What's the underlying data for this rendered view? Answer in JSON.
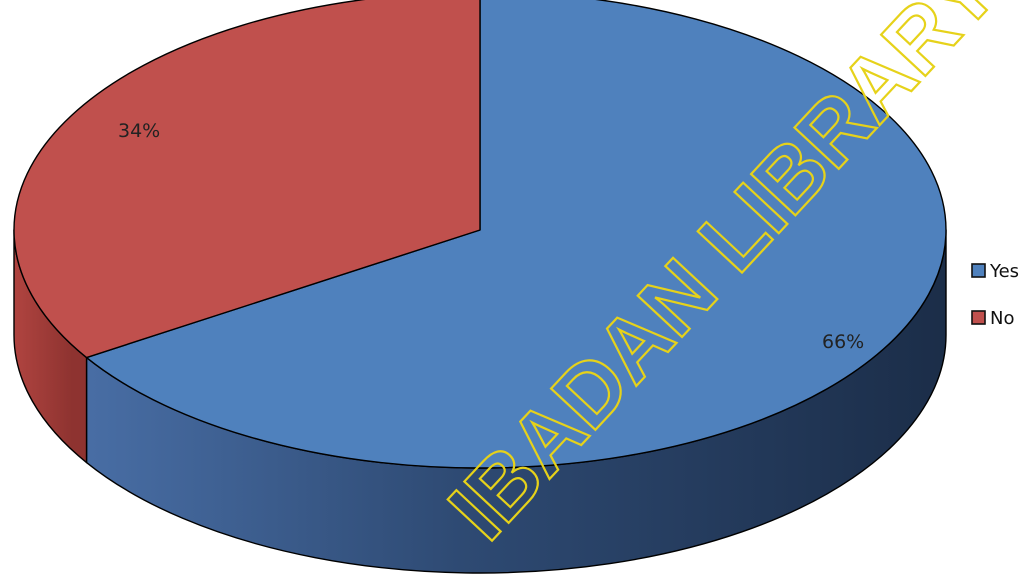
{
  "chart_data": {
    "type": "pie",
    "style": "3d",
    "title": "",
    "categories": [
      "Yes",
      "No"
    ],
    "values": [
      66,
      34
    ],
    "data_labels": [
      "66%",
      "34%"
    ],
    "colors": [
      "#4f81bd",
      "#c0504d"
    ],
    "legend_position": "right"
  },
  "watermark": {
    "text": "IBADAN LIBRARY",
    "color": "#e6d21a"
  }
}
